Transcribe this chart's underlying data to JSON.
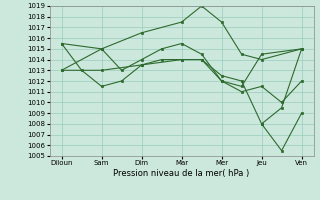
{
  "xlabel": "Pression niveau de la mer( hPa )",
  "background_color": "#cce8dd",
  "grid_color": "#99ccbb",
  "line_color": "#2d6a2d",
  "marker_color": "#2d6a2d",
  "ylim": [
    1005,
    1019
  ],
  "yticks": [
    1005,
    1006,
    1007,
    1008,
    1009,
    1010,
    1011,
    1012,
    1013,
    1014,
    1015,
    1016,
    1017,
    1018,
    1019
  ],
  "xtick_labels": [
    "Diloun",
    "Sam",
    "Dim",
    "Mar",
    "Mer",
    "Jeu",
    "Ven"
  ],
  "x_positions": [
    0,
    1,
    2,
    3,
    4,
    5,
    6
  ],
  "lines": [
    {
      "x": [
        0,
        1,
        2,
        3,
        3.5,
        4,
        4.5,
        5,
        6
      ],
      "y": [
        1013.0,
        1015.0,
        1016.5,
        1017.5,
        1019.0,
        1017.5,
        1014.5,
        1014.0,
        1015.0
      ]
    },
    {
      "x": [
        0,
        0.5,
        1,
        1.5,
        2,
        2.5,
        3,
        3.5,
        4,
        4.5,
        5,
        6
      ],
      "y": [
        1015.5,
        1013.0,
        1011.5,
        1012.0,
        1013.5,
        1014.0,
        1014.0,
        1014.0,
        1012.0,
        1011.5,
        1014.5,
        1015.0
      ]
    },
    {
      "x": [
        0,
        1,
        1.5,
        2,
        2.5,
        3,
        3.5,
        4,
        4.5,
        5,
        5.5,
        6
      ],
      "y": [
        1015.5,
        1015.0,
        1013.0,
        1014.0,
        1015.0,
        1015.5,
        1014.5,
        1012.0,
        1011.0,
        1011.5,
        1010.0,
        1012.0
      ]
    },
    {
      "x": [
        0,
        1,
        2,
        3,
        3.5,
        4,
        4.5,
        5,
        5.5,
        6
      ],
      "y": [
        1013.0,
        1013.0,
        1013.5,
        1014.0,
        1014.0,
        1012.5,
        1012.0,
        1008.0,
        1005.5,
        1009.0
      ]
    },
    {
      "x": [
        5,
        5.5,
        6
      ],
      "y": [
        1008.0,
        1009.5,
        1015.0
      ]
    }
  ]
}
